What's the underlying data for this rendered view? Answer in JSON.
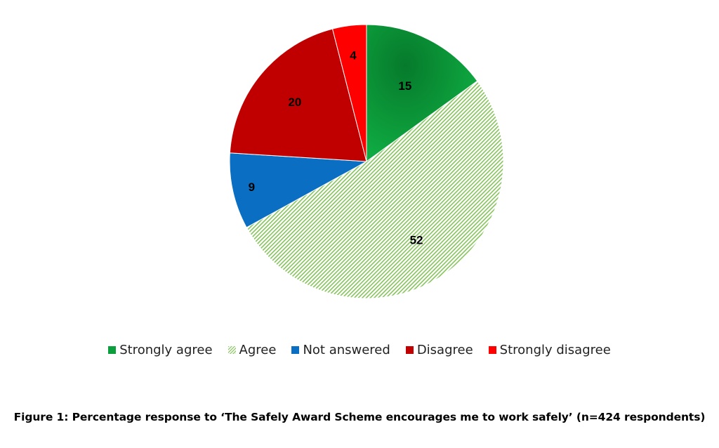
{
  "chart_data": {
    "type": "pie",
    "categories": [
      "Strongly agree",
      "Agree",
      "Not answered",
      "Disagree",
      "Strongly disagree"
    ],
    "values": [
      15,
      52,
      9,
      20,
      4
    ],
    "data_labels": [
      "15",
      "52",
      "9",
      "20",
      "4"
    ],
    "start_angle": "12 o'clock",
    "direction": "clockwise",
    "legend_position": "bottom",
    "colors": [
      "#0a9e3c",
      "#7dc050",
      "#0a6fc2",
      "#c00000",
      "#ff0000"
    ],
    "patterns": [
      "radial-gradient",
      "diagonal-hatch",
      "solid",
      "solid",
      "solid"
    ],
    "legend": [
      {
        "label": "Strongly agree",
        "color": "#0a9e3c",
        "pattern": "solid"
      },
      {
        "label": "Agree",
        "color": "#7dc050",
        "pattern": "diagonal-hatch"
      },
      {
        "label": "Not answered",
        "color": "#0a6fc2",
        "pattern": "solid"
      },
      {
        "label": "Disagree",
        "color": "#c00000",
        "pattern": "solid"
      },
      {
        "label": "Strongly disagree",
        "color": "#ff0000",
        "pattern": "solid"
      }
    ]
  },
  "caption": "Figure 1: Percentage response to ‘The Safely Award Scheme encourages me to work safely’ (n=424 respondents)"
}
